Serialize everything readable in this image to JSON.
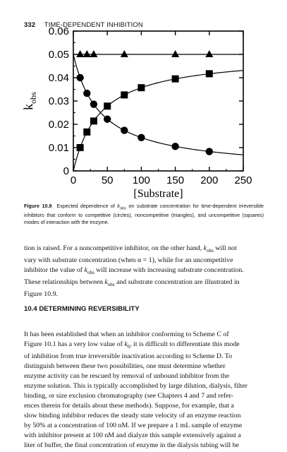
{
  "header": {
    "page_number": "332",
    "running_title": "TIME-DEPENDENT INHIBITION"
  },
  "chart_data": {
    "type": "scatter",
    "ylabel": "k_obs",
    "xlabel": "[Substrate]",
    "xlim": [
      0,
      250
    ],
    "ylim": [
      0,
      0.06
    ],
    "x_ticks": [
      "0",
      "50",
      "100",
      "150",
      "200",
      "250"
    ],
    "y_ticks": [
      "0",
      "0.01",
      "0.02",
      "0.03",
      "0.04",
      "0.05",
      "0.06"
    ],
    "grid": false,
    "series": [
      {
        "marker": "circle",
        "x": [
          10,
          20,
          30,
          50,
          75,
          100,
          150,
          200
        ],
        "y": [
          0.04,
          0.0333,
          0.0286,
          0.0222,
          0.0174,
          0.0143,
          0.0105,
          0.0083
        ]
      },
      {
        "marker": "triangle",
        "x": [
          10,
          20,
          30,
          75,
          150,
          200
        ],
        "y": [
          0.05,
          0.05,
          0.05,
          0.05,
          0.05,
          0.05
        ]
      },
      {
        "marker": "square",
        "x": [
          10,
          20,
          30,
          50,
          75,
          100,
          150,
          200
        ],
        "y": [
          0.01,
          0.0167,
          0.0214,
          0.0278,
          0.0326,
          0.0357,
          0.0395,
          0.0417
        ]
      }
    ]
  },
  "caption": {
    "label": "Figure 10.9",
    "text_before": "Expected dependence of ",
    "k": "k",
    "sub": "obs",
    "text_after": " on substrate concentration for time-dependent irreversible inhibitors that conform to competitive (circles), noncompetitive (triangles), and uncompetitive (squares) modes of interaction with the enzyme."
  },
  "paragraph1": [
    "tion is raised. For a noncompetitive inhibitor, on the other hand, k_obs will not",
    "vary with substrate concentration (when α = 1), while for an uncompetitive",
    "inhibitor the value of k_obs will increase with increasing substrate concentration.",
    "These relationships between k_obs and substrate concentration are illustrated in",
    "Figure 10.9."
  ],
  "section_heading": "10.4 DETERMINING REVERSIBILITY",
  "paragraph2": [
    "It has been established that when an inhibitor conforming to Scheme C of",
    "Figure 10.1 has a very low value of k_6, it is difficult to differentiate this mode",
    "of inhibition from true irreversible inactivation according to Scheme D. To",
    "distinguish between these two possibilities, one must determine whether",
    "enzyme activity can be rescued by removal of unbound inhibitor from the",
    "enzyme solution. This is typically accomplished by large dilution, dialysis, filter",
    "binding, or size exclusion chromatography (see Chapters 4 and 7 and refer-",
    "ences therein for details about these methods). Suppose, for example, that a",
    "slow binding inhibitor reduces the steady state velocity of an enzyme reaction",
    "by 50% at a concentration of 100 nM. If we prepare a 1 mL sample of enzyme",
    "with inhibitor present at 100 nM and dialyze this sample extensively against a",
    "liter of buffer, the final concentration of enzyme in the dialysis tubing will be"
  ]
}
